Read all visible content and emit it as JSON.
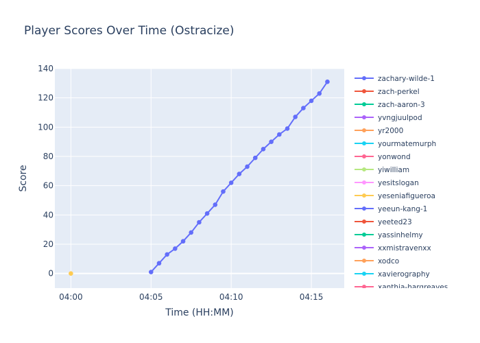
{
  "chart_data": {
    "type": "line",
    "title": "Player Scores Over Time (Ostracize)",
    "xlabel": "Time (HH:MM)",
    "ylabel": "Score",
    "xlim": [
      "03:59:00",
      "04:17:03"
    ],
    "ylim": [
      -10,
      140
    ],
    "x_ticks": [
      "04:00",
      "04:05",
      "04:10",
      "04:15"
    ],
    "y_ticks": [
      0,
      20,
      40,
      60,
      80,
      100,
      120,
      140
    ],
    "grid": true,
    "legend_placement": "right",
    "series": [
      {
        "name": "zachary-wilde-1",
        "color": "#636efa",
        "points": [
          [
            "04:05:00",
            1
          ],
          [
            "04:05:30",
            7
          ],
          [
            "04:06:00",
            13
          ],
          [
            "04:06:30",
            17
          ],
          [
            "04:07:00",
            22
          ],
          [
            "04:07:30",
            28
          ],
          [
            "04:08:00",
            35
          ],
          [
            "04:08:30",
            41
          ],
          [
            "04:09:00",
            47
          ],
          [
            "04:09:30",
            56
          ],
          [
            "04:10:00",
            62
          ],
          [
            "04:10:30",
            68
          ],
          [
            "04:11:00",
            73
          ],
          [
            "04:11:30",
            79
          ],
          [
            "04:12:00",
            85
          ],
          [
            "04:12:30",
            90
          ],
          [
            "04:13:00",
            95
          ],
          [
            "04:13:30",
            99
          ],
          [
            "04:14:00",
            107
          ],
          [
            "04:14:30",
            113
          ],
          [
            "04:15:00",
            118
          ],
          [
            "04:15:30",
            123
          ],
          [
            "04:16:00",
            131
          ]
        ]
      },
      {
        "name": "zach-perkel",
        "color": "#EF553B",
        "points": []
      },
      {
        "name": "zach-aaron-3",
        "color": "#00cc96",
        "points": []
      },
      {
        "name": "yvngjuulpod",
        "color": "#ab63fa",
        "points": []
      },
      {
        "name": "yr2000",
        "color": "#FFA15A",
        "points": []
      },
      {
        "name": "yourmatemurph",
        "color": "#19d3f3",
        "points": []
      },
      {
        "name": "yonwond",
        "color": "#FF6692",
        "points": []
      },
      {
        "name": "yiwilliam",
        "color": "#B6E880",
        "points": []
      },
      {
        "name": "yesitslogan",
        "color": "#FF97FF",
        "points": []
      },
      {
        "name": "yeseniafigueroa",
        "color": "#FECB52",
        "points": [
          [
            "04:00:00",
            0
          ]
        ]
      },
      {
        "name": "yeeun-kang-1",
        "color": "#636efa",
        "points": []
      },
      {
        "name": "yeeted23",
        "color": "#EF553B",
        "points": []
      },
      {
        "name": "yassinhelmy",
        "color": "#00cc96",
        "points": []
      },
      {
        "name": "xxmistravenxx",
        "color": "#ab63fa",
        "points": []
      },
      {
        "name": "xodco",
        "color": "#FFA15A",
        "points": []
      },
      {
        "name": "xavierography",
        "color": "#19d3f3",
        "points": []
      },
      {
        "name": "xanthia-hargreaves",
        "color": "#FF6692",
        "points": []
      }
    ]
  }
}
